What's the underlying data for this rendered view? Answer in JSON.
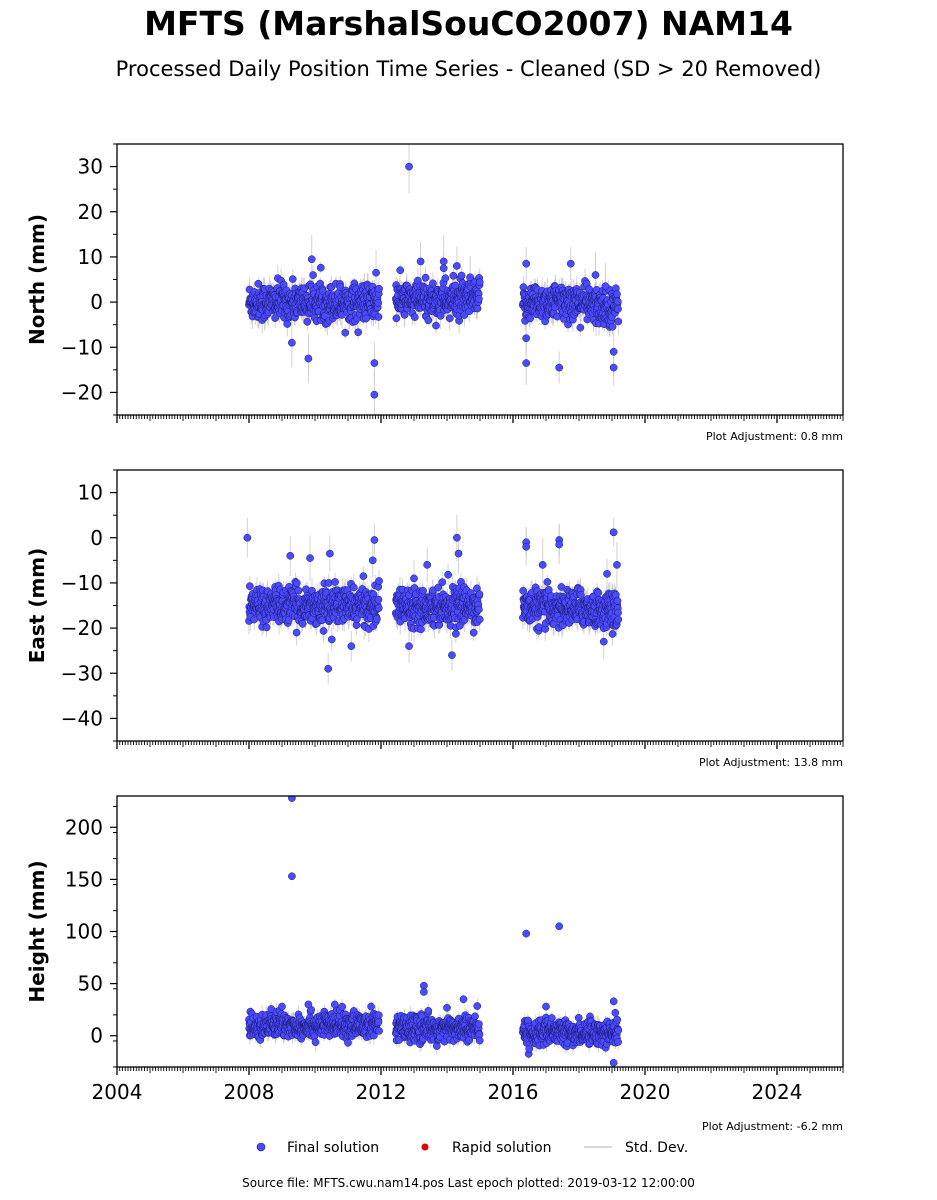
{
  "header": {
    "title": "MFTS (MarshalSouCO2007) NAM14",
    "subtitle": "Processed Daily Position Time Series - Cleaned (SD > 20 Removed)"
  },
  "footer": {
    "source": "Source file: MFTS.cwu.nam14.pos  Last epoch plotted: 2019-03-12 12:00:00"
  },
  "legend": {
    "final": "Final solution",
    "rapid": "Rapid solution",
    "std": "Std. Dev."
  },
  "colors": {
    "final": "#4a4aff",
    "rapid": "#e00000",
    "std": "#c8c8c8",
    "axis": "#000000"
  },
  "chart_data": [
    {
      "type": "scatter",
      "ylabel": "North (mm)",
      "adjustment": "Plot Adjustment: 0.8 mm",
      "xlim": [
        2004,
        2026
      ],
      "ylim": [
        -25,
        35
      ],
      "yticks": [
        -20,
        -10,
        0,
        10,
        20,
        30
      ],
      "yticklabels": [
        "−20",
        "−10",
        "0",
        "10",
        "20",
        "30"
      ],
      "segments": [
        {
          "start": 2008.0,
          "end": 2011.95,
          "mean": 0,
          "spread": 2
        },
        {
          "start": 2012.45,
          "end": 2015.0,
          "mean": 0.5,
          "spread": 2
        },
        {
          "start": 2016.3,
          "end": 2018.3,
          "mean": 0,
          "spread": 2
        },
        {
          "start": 2018.3,
          "end": 2019.2,
          "mean": -1,
          "spread": 2
        }
      ],
      "outliers": [
        [
          2012.85,
          30
        ],
        [
          2011.8,
          -20.5
        ],
        [
          2011.8,
          -13.5
        ],
        [
          2011.85,
          6.5
        ],
        [
          2009.9,
          9.5
        ],
        [
          2009.8,
          -12.5
        ],
        [
          2009.3,
          -9
        ],
        [
          2016.4,
          8.5
        ],
        [
          2016.4,
          -13.5
        ],
        [
          2016.4,
          -8
        ],
        [
          2017.4,
          -14.5
        ],
        [
          2019.05,
          -14.5
        ],
        [
          2019.05,
          -11
        ],
        [
          2013.2,
          9
        ],
        [
          2013.9,
          9
        ],
        [
          2013.9,
          7.5
        ],
        [
          2014.3,
          8
        ],
        [
          2017.75,
          8.5
        ],
        [
          2018.5,
          6
        ],
        [
          2018.8,
          3.5
        ],
        [
          2014.7,
          5.5
        ]
      ]
    },
    {
      "type": "scatter",
      "ylabel": "East (mm)",
      "adjustment": "Plot Adjustment: 13.8 mm",
      "xlim": [
        2004,
        2026
      ],
      "ylim": [
        -45,
        15
      ],
      "yticks": [
        -40,
        -30,
        -20,
        -10,
        0,
        10
      ],
      "yticklabels": [
        "−40",
        "−30",
        "−20",
        "−10",
        "0",
        "10"
      ],
      "segments": [
        {
          "start": 2008.0,
          "end": 2011.95,
          "mean": -15,
          "spread": 2
        },
        {
          "start": 2012.45,
          "end": 2015.0,
          "mean": -15,
          "spread": 2
        },
        {
          "start": 2016.3,
          "end": 2018.3,
          "mean": -15.5,
          "spread": 2
        },
        {
          "start": 2018.3,
          "end": 2019.2,
          "mean": -16,
          "spread": 2
        }
      ],
      "outliers": [
        [
          2007.95,
          0
        ],
        [
          2010.4,
          -29
        ],
        [
          2011.8,
          -0.5
        ],
        [
          2011.75,
          -5
        ],
        [
          2010.45,
          -3.5
        ],
        [
          2009.25,
          -4
        ],
        [
          2009.85,
          -4.5
        ],
        [
          2011.1,
          -24
        ],
        [
          2012.85,
          -24
        ],
        [
          2014.3,
          0
        ],
        [
          2014.35,
          -3.5
        ],
        [
          2014.15,
          -26
        ],
        [
          2016.4,
          -1
        ],
        [
          2016.4,
          -2
        ],
        [
          2017.4,
          -0.5
        ],
        [
          2017.4,
          -1.5
        ],
        [
          2016.9,
          -6
        ],
        [
          2019.05,
          1.2
        ],
        [
          2019.15,
          -6
        ],
        [
          2018.85,
          -8
        ],
        [
          2018.75,
          -23
        ],
        [
          2013.0,
          -9
        ],
        [
          2013.4,
          -6
        ]
      ]
    },
    {
      "type": "scatter",
      "ylabel": "Height (mm)",
      "adjustment": "Plot Adjustment: -6.2 mm",
      "xlim": [
        2004,
        2026
      ],
      "ylim": [
        -30,
        230
      ],
      "yticks": [
        0,
        50,
        100,
        150,
        200
      ],
      "yticklabels": [
        "0",
        "50",
        "100",
        "150",
        "200"
      ],
      "xticks": [
        2004,
        2008,
        2012,
        2016,
        2020,
        2024
      ],
      "xticklabels": [
        "2004",
        "2008",
        "2012",
        "2016",
        "2020",
        "2024"
      ],
      "segments": [
        {
          "start": 2008.0,
          "end": 2011.95,
          "mean": 10,
          "spread": 6
        },
        {
          "start": 2012.45,
          "end": 2015.0,
          "mean": 7,
          "spread": 6
        },
        {
          "start": 2016.3,
          "end": 2018.3,
          "mean": 3,
          "spread": 6
        },
        {
          "start": 2018.3,
          "end": 2019.2,
          "mean": 3,
          "spread": 6
        }
      ],
      "outliers": [
        [
          2009.3,
          228
        ],
        [
          2009.3,
          153
        ],
        [
          2016.4,
          98
        ],
        [
          2017.4,
          105
        ],
        [
          2013.3,
          48
        ],
        [
          2013.3,
          42
        ],
        [
          2014.5,
          35
        ],
        [
          2019.05,
          33
        ],
        [
          2019.05,
          -26
        ],
        [
          2019.1,
          22
        ],
        [
          2017.0,
          28
        ],
        [
          2009.8,
          30
        ],
        [
          2010.6,
          30
        ],
        [
          2011.7,
          28
        ],
        [
          2009.0,
          28
        ]
      ]
    }
  ]
}
